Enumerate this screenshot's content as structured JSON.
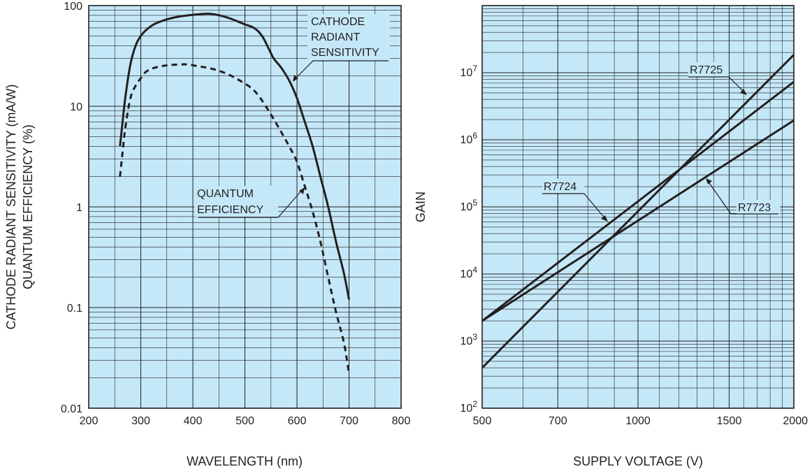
{
  "chart_data": [
    {
      "type": "line",
      "title": "",
      "xlabel": "WAVELENGTH (nm)",
      "ylabel_lines": [
        "CATHODE RADIANT SENSITIVITY (mA/W)",
        "QUANTUM EFFICIENCY (%)"
      ],
      "xscale": "linear",
      "yscale": "log",
      "xlim": [
        200,
        800
      ],
      "ylim": [
        0.01,
        100
      ],
      "grid": true,
      "background": "#c5e8f8",
      "line_color": "#231f20",
      "xticks": [
        200,
        300,
        400,
        500,
        600,
        700,
        800
      ],
      "xtick_labels": [
        "200",
        "300",
        "400",
        "500",
        "600",
        "700",
        "800"
      ],
      "yticks": [
        0.01,
        0.1,
        1,
        10,
        100
      ],
      "ytick_labels": [
        "0.01",
        "0.1",
        "1",
        "10",
        "100"
      ],
      "series": [
        {
          "name": "CATHODE RADIANT SENSITIVITY",
          "label_lines": [
            "CATHODE",
            "RADIANT",
            "SENSITIVITY"
          ],
          "style": "solid",
          "x": [
            260,
            265,
            270,
            280,
            290,
            300,
            310,
            325,
            350,
            375,
            400,
            425,
            440,
            455,
            470,
            485,
            500,
            515,
            525,
            535,
            545,
            555,
            570,
            585,
            600,
            615,
            630,
            645,
            660,
            675,
            690,
            700
          ],
          "y": [
            4,
            7,
            12,
            26,
            40,
            50,
            57,
            65,
            73,
            78,
            81,
            83,
            82,
            79,
            75,
            70,
            65,
            61,
            56,
            48,
            38,
            30,
            24,
            18,
            12,
            7,
            4,
            2,
            1,
            0.45,
            0.22,
            0.12
          ]
        },
        {
          "name": "QUANTUM EFFICIENCY",
          "label_lines": [
            "QUANTUM",
            "EFFICIENCY"
          ],
          "style": "dashed",
          "x": [
            260,
            265,
            270,
            280,
            290,
            300,
            310,
            325,
            350,
            375,
            390,
            410,
            430,
            450,
            470,
            490,
            510,
            525,
            540,
            555,
            570,
            585,
            600,
            615,
            630,
            645,
            660,
            675,
            690,
            700
          ],
          "y": [
            2,
            3.5,
            6,
            12,
            16,
            19,
            22,
            24,
            25.5,
            26,
            26,
            25,
            24,
            22.5,
            20.5,
            18,
            15.5,
            13,
            10,
            7.5,
            5.5,
            4,
            2.8,
            1.6,
            0.9,
            0.45,
            0.2,
            0.09,
            0.045,
            0.022
          ]
        }
      ]
    },
    {
      "type": "line",
      "title": "",
      "xlabel": "SUPPLY VOLTAGE (V)",
      "ylabel": "GAIN",
      "xscale": "log",
      "yscale": "log",
      "xlim": [
        500,
        2000
      ],
      "ylim": [
        100,
        100000000
      ],
      "grid": true,
      "background": "#c5e8f8",
      "line_color": "#231f20",
      "xticks": [
        500,
        700,
        1000,
        1500,
        2000
      ],
      "xtick_labels": [
        "500",
        "700",
        "1000",
        "1500",
        "2000"
      ],
      "yticks": [
        100,
        1000,
        10000,
        100000,
        1000000,
        10000000
      ],
      "ytick_labels": [
        {
          "base": "10",
          "exp": "2"
        },
        {
          "base": "10",
          "exp": "3"
        },
        {
          "base": "10",
          "exp": "4"
        },
        {
          "base": "10",
          "exp": "5"
        },
        {
          "base": "10",
          "exp": "6"
        },
        {
          "base": "10",
          "exp": "7"
        }
      ],
      "series": [
        {
          "name": "R7725",
          "x": [
            500,
            2000
          ],
          "y": [
            400,
            18500000
          ]
        },
        {
          "name": "R7724",
          "x": [
            500,
            2000
          ],
          "y": [
            2000,
            7300000
          ]
        },
        {
          "name": "R7723",
          "x": [
            500,
            2000
          ],
          "y": [
            2000,
            1950000
          ]
        }
      ]
    }
  ]
}
